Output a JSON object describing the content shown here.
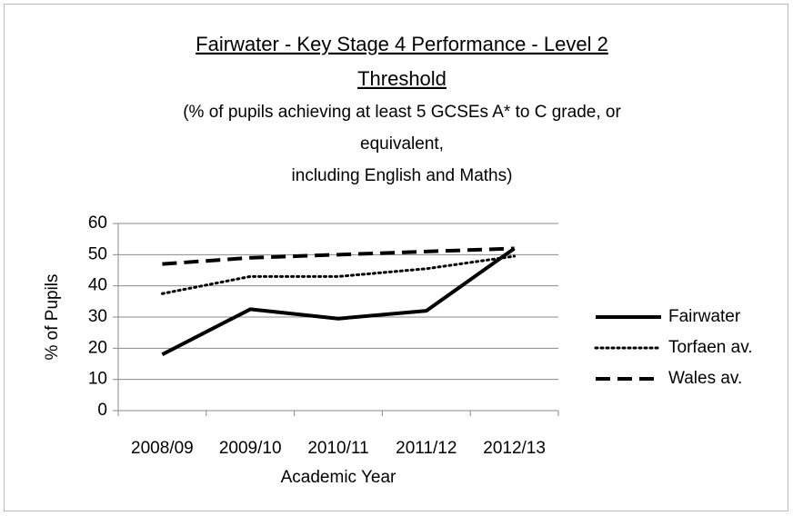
{
  "chart_data": {
    "type": "line",
    "title": [
      "Fairwater - Key Stage 4 Performance - Level 2",
      "Threshold"
    ],
    "subtitle": [
      "(% of pupils achieving at least 5 GCSEs A* to C grade, or",
      "equivalent,",
      "including  English and Maths)"
    ],
    "x_label": "Academic Year",
    "y_label": "% of Pupils",
    "categories": [
      "2008/09",
      "2009/10",
      "2010/11",
      "2011/12",
      "2012/13"
    ],
    "series": [
      {
        "name": "Fairwater",
        "color": "#000000",
        "style": "solid",
        "values": [
          18,
          32.5,
          29.5,
          32,
          52
        ]
      },
      {
        "name": "Torfaen av.",
        "color": "#000000",
        "style": "dotted",
        "values": [
          37.5,
          43,
          43,
          45.5,
          49.5
        ]
      },
      {
        "name": "Wales av.",
        "color": "#000000",
        "style": "dashed",
        "values": [
          47,
          49,
          50,
          51,
          52
        ]
      }
    ],
    "ylim": [
      0,
      60
    ],
    "yticks": [
      0,
      10,
      20,
      30,
      40,
      50,
      60
    ],
    "grid": true,
    "legend": "right"
  }
}
